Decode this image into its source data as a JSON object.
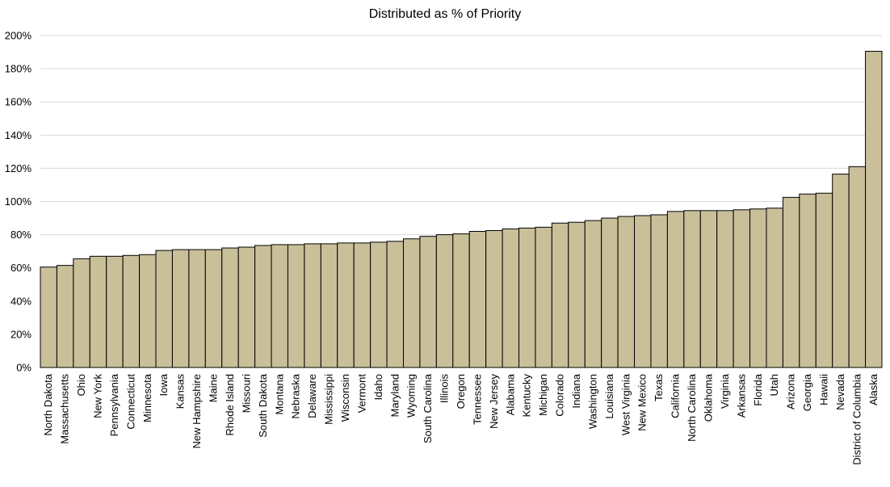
{
  "chart_data": {
    "type": "bar",
    "title": "Distributed as % of Priority",
    "xlabel": "",
    "ylabel": "",
    "ylim": [
      0,
      200
    ],
    "yticks": [
      0,
      20,
      40,
      60,
      80,
      100,
      120,
      140,
      160,
      180,
      200
    ],
    "ytick_format": "{v}%",
    "grid": true,
    "bar_color": "#c9bf99",
    "categories": [
      "North Dakota",
      "Massachusetts",
      "Ohio",
      "New York",
      "Pennsylvania",
      "Connecticut",
      "Minnesota",
      "Iowa",
      "Kansas",
      "New Hampshire",
      "Maine",
      "Rhode Island",
      "Missouri",
      "South Dakota",
      "Montana",
      "Nebraska",
      "Delaware",
      "Mississippi",
      "Wisconsin",
      "Vermont",
      "Idaho",
      "Maryland",
      "Wyoming",
      "South Carolina",
      "Illinois",
      "Oregon",
      "Tennessee",
      "New Jersey",
      "Alabama",
      "Kentucky",
      "Michigan",
      "Colorado",
      "Indiana",
      "Washington",
      "Louisiana",
      "West Virginia",
      "New Mexico",
      "Texas",
      "California",
      "North Carolina",
      "Oklahoma",
      "Virginia",
      "Arkansas",
      "Florida",
      "Utah",
      "Arizona",
      "Georgia",
      "Hawaii",
      "Nevada",
      "District of Columbia",
      "Alaska"
    ],
    "values": [
      60.5,
      61.5,
      65.5,
      67,
      67,
      67.5,
      68,
      70.5,
      71,
      71,
      71,
      72,
      72.5,
      73.5,
      74,
      74,
      74.5,
      74.5,
      75,
      75,
      75.5,
      76,
      77.5,
      79,
      80,
      80.5,
      82,
      82.5,
      83.5,
      84,
      84.5,
      87,
      87.5,
      88.5,
      90,
      91,
      91.5,
      92,
      94,
      94.5,
      94.5,
      94.5,
      95,
      95.5,
      96,
      102.5,
      104.5,
      105,
      116.5,
      121,
      190.5
    ]
  }
}
